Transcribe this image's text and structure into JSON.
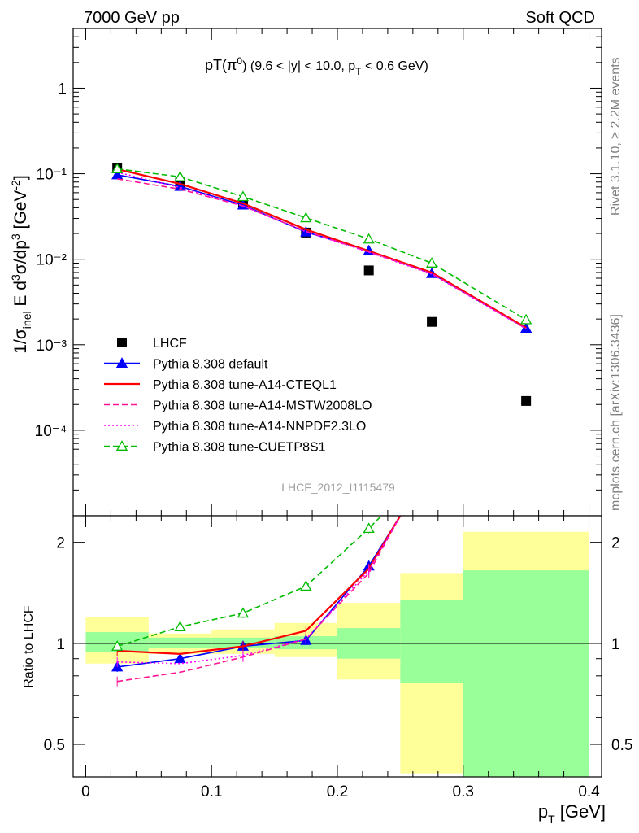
{
  "header": {
    "left": "7000 GeV pp",
    "right": "Soft QCD"
  },
  "side_text": {
    "rivet": "Rivet 3.1.10, ≥ 2.2M events",
    "mcplots": "mcplots.cern.ch [arXiv:1306.3436]"
  },
  "chart_data": [
    {
      "type": "scatter",
      "title": "pT(π⁰) (9.6 < |y| < 10.0, pT < 0.6 GeV)",
      "title_parts": {
        "main": "pT(π",
        "sup": "0",
        "rest": ") (9.6 < |y| < 10.0, p",
        "sub": "T",
        "tail": " < 0.6 GeV)"
      },
      "ylabel": "1/σinel E d³σ/dp³ [GeV⁻²]",
      "yscale": "log",
      "ylim": [
        1e-05,
        5
      ],
      "xlim": [
        -0.01,
        0.41
      ],
      "ytick_labels": [
        "10⁻⁴",
        "10⁻³",
        "10⁻²",
        "10⁻¹",
        "1"
      ],
      "watermark": "LHCF_2012_I1115479",
      "x": [
        0.025,
        0.075,
        0.125,
        0.175,
        0.225,
        0.275,
        0.35
      ],
      "series": [
        {
          "name": "LHCF",
          "color": "#000000",
          "marker": "square",
          "line": "none",
          "values": [
            0.118,
            0.079,
            0.046,
            0.0205,
            0.0074,
            0.00185,
            0.00022
          ]
        },
        {
          "name": "Pythia 8.308 default",
          "color": "#0000ff",
          "marker": "triangle",
          "line": "solid",
          "values": [
            0.097,
            0.071,
            0.043,
            0.0208,
            0.0126,
            0.0068,
            0.00156
          ]
        },
        {
          "name": "Pythia 8.308 tune-A14-CTEQL1",
          "color": "#ff0000",
          "marker": "none",
          "line": "solid",
          "values": [
            0.113,
            0.076,
            0.045,
            0.0223,
            0.0125,
            0.007,
            0.00158
          ]
        },
        {
          "name": "Pythia 8.308 tune-A14-MSTW2008LO",
          "color": "#ff1493",
          "marker": "none",
          "line": "dashed",
          "values": [
            0.087,
            0.066,
            0.042,
            0.0212,
            0.0122,
            0.0068,
            0.00154
          ]
        },
        {
          "name": "Pythia 8.308 tune-A14-NNPDF2.3LO",
          "color": "#ff00ff",
          "marker": "none",
          "line": "dotted",
          "values": [
            0.104,
            0.069,
            0.042,
            0.021,
            0.0121,
            0.0067,
            0.00153
          ]
        },
        {
          "name": "Pythia 8.308 tune-CUETP8S1",
          "color": "#00bb00",
          "marker": "open-triangle",
          "line": "dashed",
          "values": [
            0.114,
            0.092,
            0.054,
            0.0305,
            0.0172,
            0.009,
            0.00196
          ]
        }
      ]
    },
    {
      "type": "line",
      "ylabel": "Ratio to LHCF",
      "xlabel": "pT [GeV]",
      "xlabel_parts": {
        "main": "p",
        "sub": "T",
        "rest": " [GeV]"
      },
      "yscale": "log",
      "ylim": [
        0.4,
        2.4
      ],
      "xlim": [
        -0.01,
        0.41
      ],
      "xticks": [
        0,
        0.1,
        0.2,
        0.3,
        0.4
      ],
      "xtick_labels": [
        "0",
        "0.1",
        "0.2",
        "0.3",
        "0.4"
      ],
      "yticks": [
        0.5,
        1,
        2
      ],
      "ytick_labels": [
        "0.5",
        "1",
        "2"
      ],
      "bands": {
        "edges": [
          0,
          0.05,
          0.1,
          0.15,
          0.2,
          0.25,
          0.3,
          0.4
        ],
        "stat": [
          [
            0.94,
            1.08
          ],
          [
            0.97,
            1.04
          ],
          [
            0.97,
            1.04
          ],
          [
            0.96,
            1.05
          ],
          [
            0.9,
            1.11
          ],
          [
            0.76,
            1.35
          ],
          [
            0.36,
            1.65
          ]
        ],
        "total": [
          [
            0.87,
            1.2
          ],
          [
            0.93,
            1.07
          ],
          [
            0.93,
            1.1
          ],
          [
            0.91,
            1.15
          ],
          [
            0.78,
            1.32
          ],
          [
            0.41,
            1.62
          ],
          [
            0.36,
            2.15
          ]
        ],
        "stat_color": "#99ff99",
        "total_color": "#ffff99"
      },
      "x": [
        0.025,
        0.075,
        0.125,
        0.175,
        0.225,
        0.25
      ],
      "series": [
        {
          "name": "Pythia 8.308 default",
          "color": "#0000ff",
          "line": "solid",
          "marker": "triangle",
          "values": [
            0.85,
            0.9,
            0.98,
            1.02,
            1.7,
            2.4
          ]
        },
        {
          "name": "Pythia 8.308 tune-A14-CTEQL1",
          "color": "#ff0000",
          "line": "solid",
          "marker": "none",
          "values": [
            0.95,
            0.93,
            0.98,
            1.09,
            1.67,
            2.4
          ]
        },
        {
          "name": "Pythia 8.308 tune-A14-MSTW2008LO",
          "color": "#ff1493",
          "line": "dashed",
          "marker": "none",
          "values": [
            0.77,
            0.82,
            0.91,
            1.03,
            1.62,
            2.4
          ]
        },
        {
          "name": "Pythia 8.308 tune-A14-NNPDF2.3LO",
          "color": "#ff00ff",
          "line": "dotted",
          "marker": "none",
          "values": [
            0.88,
            0.87,
            0.92,
            1.03,
            1.65,
            2.4
          ]
        },
        {
          "name": "Pythia 8.308 tune-CUETP8S1",
          "color": "#00bb00",
          "line": "dashed",
          "marker": "open-triangle",
          "x": [
            0.025,
            0.075,
            0.125,
            0.175,
            0.225,
            0.235
          ],
          "values": [
            0.98,
            1.12,
            1.23,
            1.48,
            2.2,
            2.4
          ]
        }
      ],
      "reference_line": 1
    }
  ]
}
